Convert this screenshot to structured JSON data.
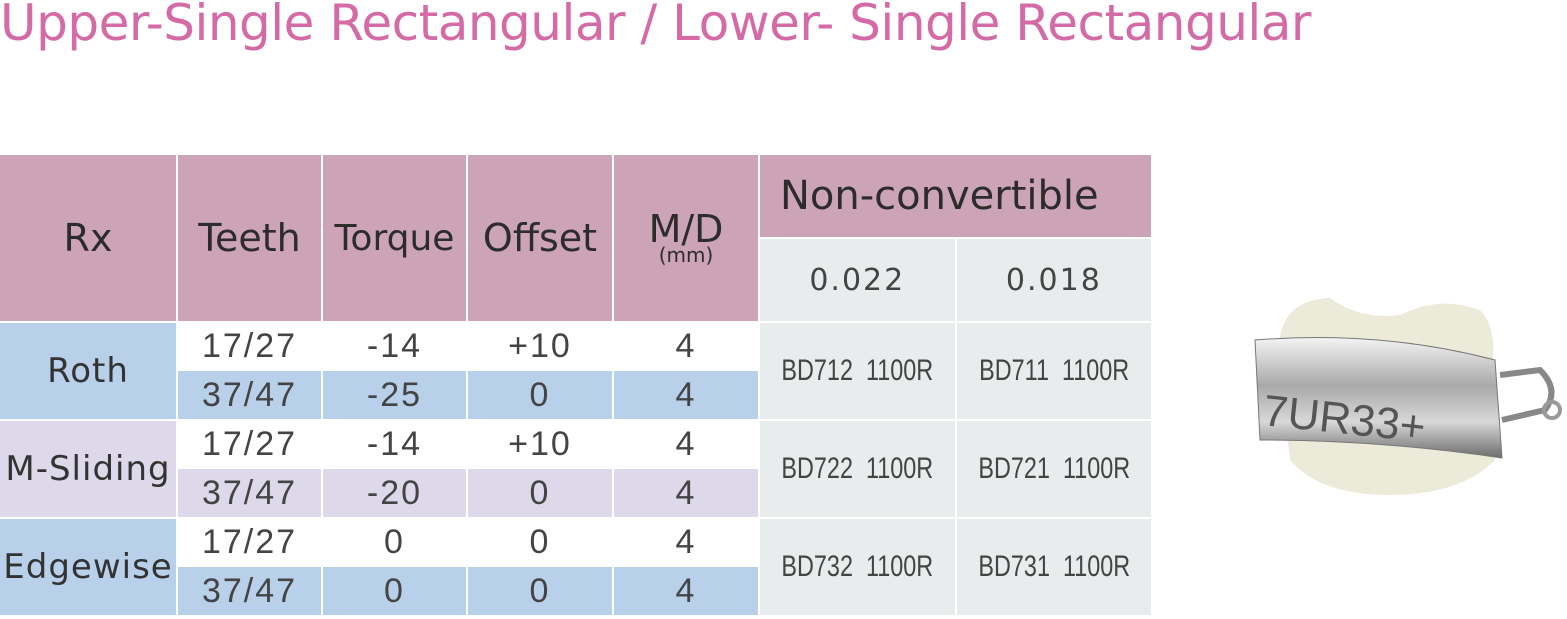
{
  "title": "Upper-Single Rectangular / Lower- Single Rectangular",
  "table": {
    "header": {
      "rx": "Rx",
      "teeth": "Teeth",
      "torque": "Torque",
      "offset": "Offset",
      "md": "M/D",
      "md_unit": "(mm)",
      "group": "Non-convertible",
      "sizes": [
        "0.022",
        "0.018"
      ]
    },
    "rows": [
      {
        "rx": "Roth",
        "sub": [
          [
            "17/27",
            "-14",
            "+10",
            "4"
          ],
          [
            "37/47",
            "-25",
            "0",
            "4"
          ]
        ],
        "codes": [
          "BD712  1100R",
          "BD711  1100R"
        ]
      },
      {
        "rx": "M-Sliding",
        "sub": [
          [
            "17/27",
            "-14",
            "+10",
            "4"
          ],
          [
            "37/47",
            "-20",
            "0",
            "4"
          ]
        ],
        "codes": [
          "BD722  1100R",
          "BD721  1100R"
        ]
      },
      {
        "rx": "Edgewise",
        "sub": [
          [
            "17/27",
            "0",
            "0",
            "4"
          ],
          [
            "37/47",
            "0",
            "0",
            "4"
          ]
        ],
        "codes": [
          "BD732  1100R",
          "BD731  1100R"
        ]
      }
    ]
  },
  "image": {
    "marking": "7UR33+"
  }
}
